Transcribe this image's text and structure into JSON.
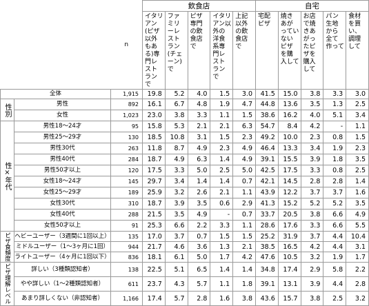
{
  "table": {
    "groups": [
      "飲食店",
      "自宅"
    ],
    "n_label": "n",
    "columns": [
      "イタリアン(ピザ以外もある)専門レストランで",
      "ファミリーレストラン(チェーン)で",
      "ピザ専門の飲食店で",
      "イタリアン以外の洋食系専門レストランで",
      "上記以外の飲食店で",
      "宅配ピザ",
      "焼きあがっていないピザを購入して",
      "お店で焼きあがったピザを購入して",
      "パン生地から全て作って",
      "食材を買い、調理して"
    ],
    "total": {
      "label": "全体",
      "n": "1,915",
      "values": [
        "19.8",
        "5.2",
        "4.0",
        "1.5",
        "3.0",
        "41.5",
        "15.0",
        "3.8",
        "3.3",
        "3.0"
      ]
    },
    "sections": [
      {
        "label": "性別",
        "rows": [
          {
            "label": "男性",
            "n": "892",
            "values": [
              "16.1",
              "6.7",
              "4.8",
              "1.9",
              "4.7",
              "44.8",
              "13.6",
              "3.5",
              "1.3",
              "2.5"
            ]
          },
          {
            "label": "女性",
            "n": "1,023",
            "values": [
              "23.0",
              "3.8",
              "3.3",
              "1.1",
              "1.5",
              "38.6",
              "16.2",
              "4.0",
              "5.1",
              "3.4"
            ]
          }
        ]
      },
      {
        "label": "性×年代",
        "rows": [
          {
            "label": "男性18～24才",
            "n": "95",
            "values": [
              "15.8",
              "5.3",
              "2.1",
              "2.1",
              "6.3",
              "54.7",
              "8.4",
              "4.2",
              "-",
              "1.1"
            ]
          },
          {
            "label": "男性25～29才",
            "n": "130",
            "values": [
              "18.5",
              "10.8",
              "3.1",
              "1.5",
              "2.3",
              "49.2",
              "10.0",
              "2.3",
              "0.8",
              "1.5"
            ]
          },
          {
            "label": "男性30代",
            "n": "263",
            "values": [
              "11.8",
              "8.7",
              "4.9",
              "2.3",
              "4.9",
              "46.4",
              "13.3",
              "3.4",
              "1.9",
              "2.3"
            ]
          },
          {
            "label": "男性40代",
            "n": "284",
            "values": [
              "18.7",
              "4.9",
              "6.3",
              "1.4",
              "4.9",
              "39.1",
              "15.5",
              "3.9",
              "1.8",
              "3.5"
            ]
          },
          {
            "label": "男性50才以上",
            "n": "120",
            "values": [
              "17.5",
              "3.3",
              "5.0",
              "2.5",
              "5.0",
              "42.5",
              "17.5",
              "3.3",
              "0.8",
              "2.5"
            ]
          },
          {
            "label": "女性18～24才",
            "n": "145",
            "values": [
              "29.7",
              "3.4",
              "1.4",
              "1.4",
              "0.7",
              "42.1",
              "14.5",
              "2.8",
              "2.8",
              "1.4"
            ]
          },
          {
            "label": "女性25～29才",
            "n": "189",
            "values": [
              "25.9",
              "3.2",
              "2.6",
              "2.1",
              "1.1",
              "43.9",
              "12.2",
              "3.7",
              "3.7",
              "1.6"
            ]
          },
          {
            "label": "女性30代",
            "n": "310",
            "values": [
              "18.7",
              "3.9",
              "3.5",
              "0.6",
              "2.9",
              "41.3",
              "15.2",
              "5.2",
              "5.2",
              "3.5"
            ]
          },
          {
            "label": "女性40代",
            "n": "288",
            "values": [
              "21.5",
              "3.5",
              "4.9",
              "-",
              "0.7",
              "33.7",
              "20.5",
              "3.8",
              "6.6",
              "4.9"
            ]
          },
          {
            "label": "女性50才以上",
            "n": "91",
            "values": [
              "25.3",
              "6.6",
              "2.2",
              "3.3",
              "1.1",
              "28.6",
              "17.6",
              "3.3",
              "6.6",
              "5.5"
            ]
          }
        ]
      },
      {
        "label": "ピザ食頻度",
        "rows": [
          {
            "label": "ヘビーユーザー（3週間に1回以上）",
            "n": "135",
            "values": [
              "17.0",
              "3.7",
              "0.7",
              "1.5",
              "1.5",
              "25.2",
              "31.9",
              "3.7",
              "4.4",
              "10.4"
            ]
          },
          {
            "label": "ミドルユーザー（1～3ヶ月に1回）",
            "n": "944",
            "values": [
              "21.7",
              "4.6",
              "3.6",
              "1.3",
              "2.1",
              "38.5",
              "16.5",
              "4.2",
              "4.4",
              "3.1"
            ]
          },
          {
            "label": "ライトユーザー（4ヶ月に1回以下）",
            "n": "836",
            "values": [
              "18.1",
              "6.1",
              "5.0",
              "1.7",
              "4.2",
              "47.6",
              "10.5",
              "3.2",
              "1.9",
              "1.7"
            ]
          }
        ]
      },
      {
        "label": "ピザ理解レベル",
        "rows": [
          {
            "label": "詳しい（3種類認知者）",
            "n": "138",
            "values": [
              "22.5",
              "5.1",
              "6.5",
              "1.4",
              "1.4",
              "34.8",
              "17.4",
              "2.9",
              "5.8",
              "2.2"
            ]
          },
          {
            "label": "やや詳しい（1～2種類認知者）",
            "n": "611",
            "values": [
              "23.7",
              "4.3",
              "5.7",
              "1.1",
              "1.8",
              "39.1",
              "13.1",
              "3.9",
              "4.4",
              "2.8"
            ]
          },
          {
            "label": "あまり詳しくない（非認知者）",
            "n": "1,166",
            "values": [
              "17.4",
              "5.7",
              "2.8",
              "1.6",
              "3.8",
              "43.6",
              "15.7",
              "3.8",
              "2.5",
              "3.2"
            ]
          }
        ]
      }
    ]
  }
}
